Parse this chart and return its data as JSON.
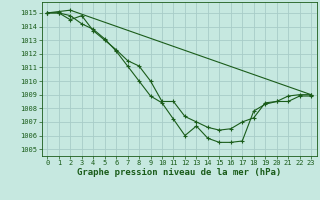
{
  "background_color": "#c6e8e0",
  "grid_color": "#a8ccc8",
  "line_color": "#1a5c1a",
  "marker_color": "#1a5c1a",
  "xlabel": "Graphe pression niveau de la mer (hPa)",
  "xlabel_fontsize": 6.5,
  "ylabel_ticks": [
    1005,
    1006,
    1007,
    1008,
    1009,
    1010,
    1011,
    1012,
    1013,
    1014,
    1015
  ],
  "xlim": [
    -0.5,
    23.5
  ],
  "ylim": [
    1004.5,
    1015.8
  ],
  "series": [
    [
      1015.0,
      1015.1,
      1015.2,
      null,
      null,
      null,
      null,
      null,
      null,
      null,
      null,
      null,
      null,
      null,
      null,
      null,
      null,
      null,
      null,
      null,
      null,
      null,
      null,
      1009.0
    ],
    [
      1015.0,
      1015.0,
      1014.8,
      1014.2,
      1013.8,
      1013.1,
      1012.2,
      1011.1,
      1010.0,
      1008.9,
      1008.4,
      1007.2,
      1006.0,
      1006.7,
      1005.8,
      1005.5,
      1005.5,
      1005.6,
      1007.8,
      1008.3,
      1008.5,
      1008.5,
      1008.9,
      1008.9
    ],
    [
      1015.0,
      1015.0,
      1014.5,
      1014.8,
      1013.7,
      1013.0,
      1012.3,
      1011.5,
      1011.1,
      1010.0,
      1008.5,
      1008.5,
      1007.4,
      1007.0,
      1006.6,
      1006.4,
      1006.5,
      1007.0,
      1007.3,
      1008.4,
      1008.5,
      1008.9,
      1009.0,
      1009.0
    ]
  ]
}
